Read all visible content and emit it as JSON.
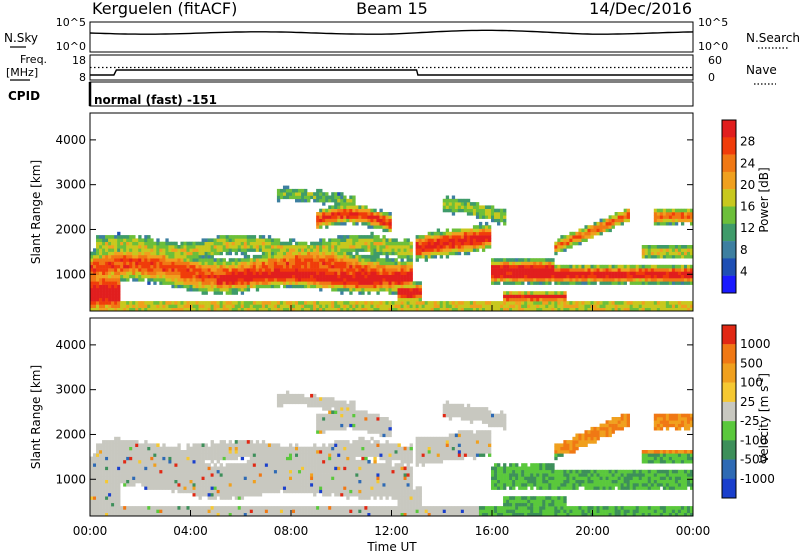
{
  "header": {
    "station": "Kerguelen (fitACF)",
    "beam": "Beam 15",
    "date": "14/Dec/2016"
  },
  "noise_panel": {
    "left_label": "N.Sky",
    "right_label": "N.Search",
    "ticks_left": [
      "10^5",
      "10^0"
    ],
    "ticks_right": [
      "10^5",
      "10^0"
    ]
  },
  "freq_panel": {
    "left_label_1": "Freq.",
    "left_label_2": "[MHz]",
    "right_label": "Nave",
    "ticks_left": [
      "18",
      "8"
    ],
    "ticks_right": [
      "60",
      "0"
    ],
    "freq_mhz_values": [
      10,
      10,
      12,
      12,
      10,
      10
    ],
    "freq_hours": [
      0,
      0.95,
      1.05,
      13.0,
      13.05,
      24
    ],
    "nave_values": [
      30,
      30
    ]
  },
  "cpid": {
    "label": "CPID",
    "value": "normal (fast) -151"
  },
  "chart_data": [
    {
      "type": "heatmap",
      "name": "power",
      "ylabel": "Slant Range [km]",
      "xlabel": "",
      "x_ticks": [
        "00:00",
        "04:00",
        "08:00",
        "12:00",
        "16:00",
        "20:00",
        "00:00"
      ],
      "y_ticks": [
        "1000",
        "2000",
        "3000",
        "4000"
      ],
      "y_tick_values": [
        1000,
        2000,
        3000,
        4000
      ],
      "xlim_hours": [
        0,
        24
      ],
      "ylim_km": [
        180,
        4600
      ],
      "colorbar": {
        "label": "Power [dB]",
        "ticks": [
          "4",
          "8",
          "12",
          "16",
          "20",
          "24",
          "28"
        ],
        "colors": [
          "#1a1aff",
          "#1e4fb4",
          "#3d7fa0",
          "#3f9b6a",
          "#6cbf3a",
          "#c8c81e",
          "#f0a01e",
          "#f07814",
          "#f03c0a",
          "#e11e1e"
        ]
      }
    },
    {
      "type": "heatmap",
      "name": "velocity",
      "ylabel": "Slant Range [km]",
      "xlabel": "Time UT",
      "x_ticks": [
        "00:00",
        "04:00",
        "08:00",
        "12:00",
        "16:00",
        "20:00",
        "00:00"
      ],
      "y_ticks": [
        "1000",
        "2000",
        "3000",
        "4000"
      ],
      "y_tick_values": [
        1000,
        2000,
        3000,
        4000
      ],
      "xlim_hours": [
        0,
        24
      ],
      "ylim_km": [
        180,
        4600
      ],
      "colorbar": {
        "label": "Velocity",
        "unit": "[m s",
        "unit_exp": "-1",
        "unit_close": "]",
        "ticks": [
          "1000",
          "500",
          "100",
          "25",
          "-25",
          "-100",
          "-500",
          "-1000"
        ],
        "colors": [
          "#1a3fcc",
          "#2e6ab4",
          "#3d8f5a",
          "#5ac83c",
          "#c8c8c0",
          "#f5c832",
          "#f0a01e",
          "#f07814",
          "#e12814"
        ]
      }
    }
  ]
}
